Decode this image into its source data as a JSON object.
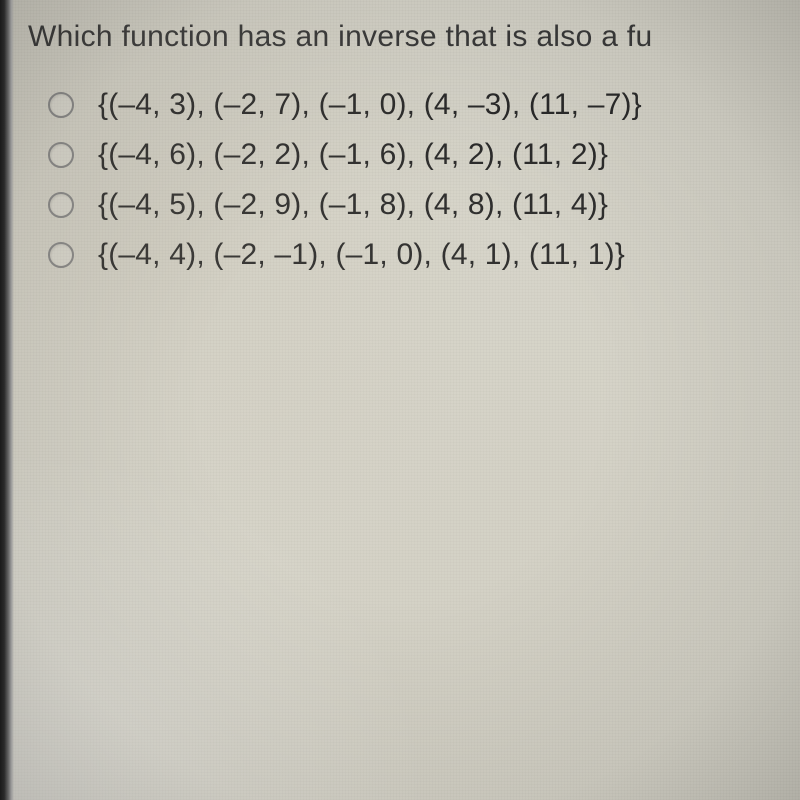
{
  "question": {
    "text": "Which function has an inverse that is also a fu",
    "text_color": "#3a3a3a",
    "fontsize": 30
  },
  "options": [
    {
      "label": "{(–4, 3), (–2, 7), (–1, 0), (4, –3), (11, –7)}"
    },
    {
      "label": "{(–4, 6), (–2, 2), (–1, 6), (4, 2), (11, 2)}"
    },
    {
      "label": "{(–4, 5), (–2, 9), (–1, 8), (4, 8), (11, 4)}"
    },
    {
      "label": "{(–4, 4), (–2, –1), (–1, 0), (4, 1), (11, 1)}"
    }
  ],
  "styling": {
    "background_color": "#d8d6cb",
    "option_text_color": "#2a2a2a",
    "option_fontsize": 30,
    "radio_border_color": "#888",
    "radio_size": 26,
    "left_edge_dark": "#1a1a1a",
    "font_family": "Arial"
  }
}
